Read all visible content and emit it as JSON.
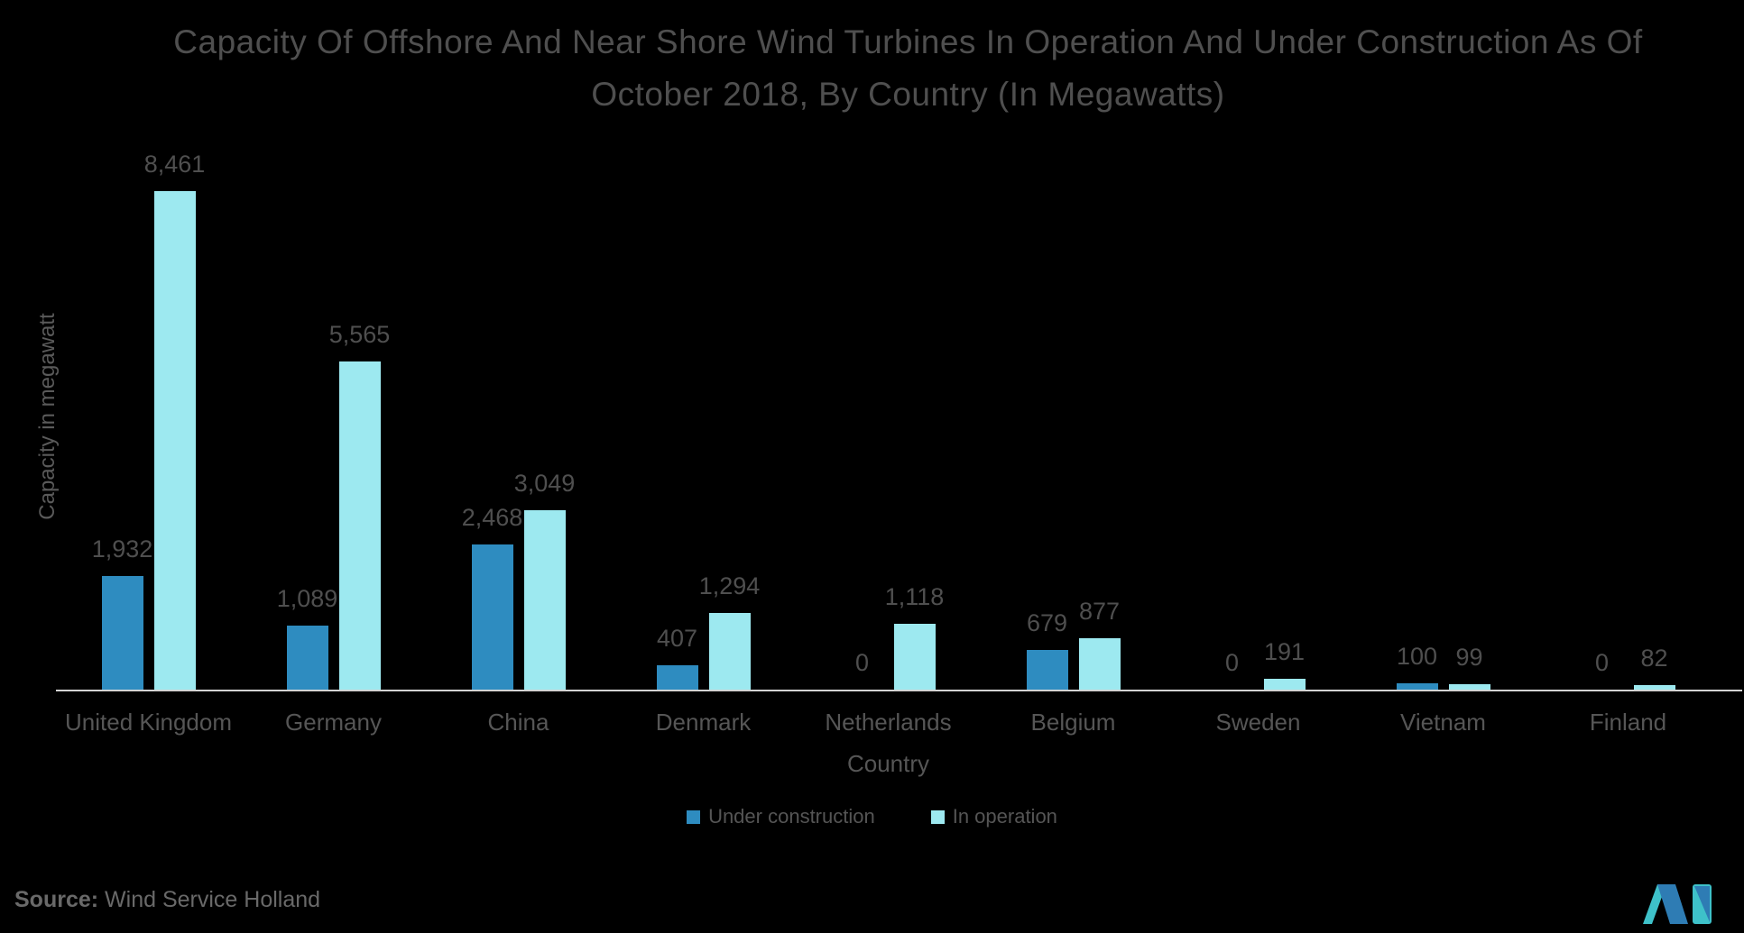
{
  "title": {
    "line1": "Capacity Of Offshore And Near Shore Wind Turbines In Operation And Under Construction As Of",
    "line2": "October 2018, By Country (In Megawatts)"
  },
  "chart_data": {
    "type": "bar",
    "categories": [
      "United Kingdom",
      "Germany",
      "China",
      "Denmark",
      "Netherlands",
      "Belgium",
      "Sweden",
      "Vietnam",
      "Finland"
    ],
    "series": [
      {
        "name": "Under construction",
        "color": "#2E8CC0",
        "values": [
          1932,
          1089,
          2468,
          407,
          0,
          679,
          0,
          100,
          0
        ],
        "labels": [
          "1,932",
          "1,089",
          "2,468",
          "407",
          "0",
          "679",
          "0",
          "100",
          "0"
        ]
      },
      {
        "name": "In operation",
        "color": "#9DE9F0",
        "values": [
          8461,
          5565,
          3049,
          1294,
          1118,
          877,
          191,
          99,
          82
        ],
        "labels": [
          "8,461",
          "5,565",
          "3,049",
          "1,294",
          "1,118",
          "877",
          "191",
          "99",
          "82"
        ]
      }
    ],
    "xlabel": "Country",
    "ylabel": "Capacity in megawatt",
    "ymax": 8461,
    "grid": false,
    "legend_position": "bottom",
    "background": "#000000",
    "axis_line_color": "#d4d4d4"
  },
  "source": {
    "label": "Source:",
    "text": "Wind Service Holland"
  },
  "logo": {
    "name": "mordor-intelligence-logo",
    "blue": "#2E7CB4",
    "teal": "#3EC1C9"
  }
}
